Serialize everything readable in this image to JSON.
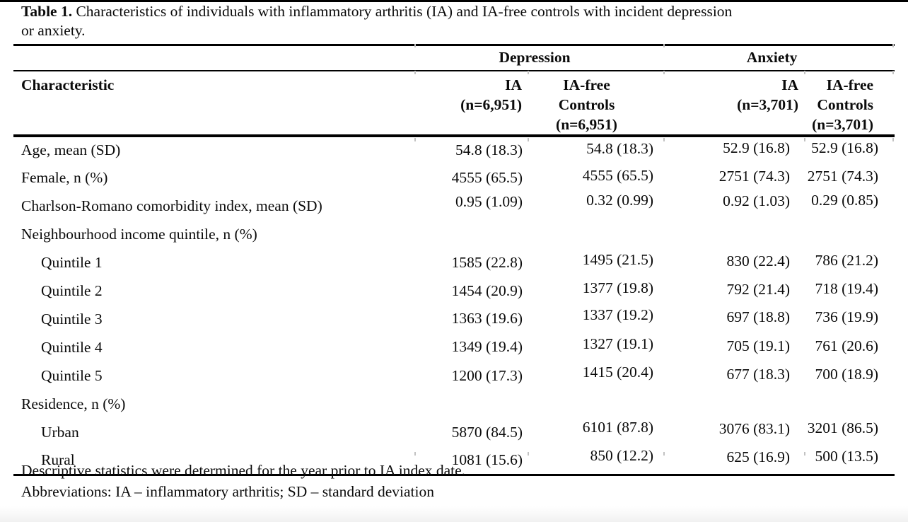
{
  "caption": {
    "label": "Table 1.",
    "text_line1": "Characteristics of individuals with inflammatory arthritis (IA) and IA-free controls with incident depression",
    "text_line2": "or anxiety."
  },
  "table": {
    "group_headers": [
      "Depression",
      "Anxiety"
    ],
    "characteristic_header": "Characteristic",
    "column_headers": [
      {
        "lines": [
          "IA",
          "(n=6,951)"
        ]
      },
      {
        "lines": [
          "IA-free",
          "Controls",
          "(n=6,951)"
        ]
      },
      {
        "lines": [
          "IA",
          "(n=3,701)"
        ]
      },
      {
        "lines": [
          "IA-free",
          "Controls",
          "(n=3,701)"
        ]
      }
    ],
    "rows": [
      {
        "label": "Age, mean (SD)",
        "indent": false,
        "values": [
          "54.8 (18.3)",
          "54.8 (18.3)",
          "52.9 (16.8)",
          "52.9 (16.8)"
        ]
      },
      {
        "label": "Female, n (%)",
        "indent": false,
        "values": [
          "4555 (65.5)",
          "4555 (65.5)",
          "2751 (74.3)",
          "2751 (74.3)"
        ]
      },
      {
        "label": "Charlson-Romano comorbidity index, mean (SD)",
        "indent": false,
        "values": [
          "0.95 (1.09)",
          "0.32 (0.99)",
          "0.92 (1.03)",
          "0.29 (0.85)"
        ]
      },
      {
        "label": "Neighbourhood income quintile, n (%)",
        "indent": false,
        "values": []
      },
      {
        "label": "Quintile 1",
        "indent": true,
        "values": [
          "1585 (22.8)",
          "1495 (21.5)",
          "830 (22.4)",
          "786 (21.2)"
        ]
      },
      {
        "label": "Quintile 2",
        "indent": true,
        "values": [
          "1454 (20.9)",
          "1377 (19.8)",
          "792 (21.4)",
          "718 (19.4)"
        ]
      },
      {
        "label": "Quintile 3",
        "indent": true,
        "values": [
          "1363 (19.6)",
          "1337 (19.2)",
          "697 (18.8)",
          "736 (19.9)"
        ]
      },
      {
        "label": "Quintile 4",
        "indent": true,
        "values": [
          "1349 (19.4)",
          "1327 (19.1)",
          "705 (19.1)",
          "761 (20.6)"
        ]
      },
      {
        "label": "Quintile 5",
        "indent": true,
        "values": [
          "1200 (17.3)",
          "1415 (20.4)",
          "677 (18.3)",
          "700 (18.9)"
        ]
      },
      {
        "label": "Residence, n (%)",
        "indent": false,
        "values": []
      },
      {
        "label": "Urban",
        "indent": true,
        "values": [
          "5870 (84.5)",
          "6101 (87.8)",
          "3076 (83.1)",
          "3201 (86.5)"
        ]
      },
      {
        "label": "Rural",
        "indent": true,
        "values": [
          "1081 (15.6)",
          "850 (12.2)",
          "625 (16.9)",
          "500 (13.5)"
        ]
      }
    ],
    "footnotes": [
      "Descriptive statistics were determined for the year prior to IA index date.",
      "Abbreviations: IA – inflammatory arthritis; SD – standard deviation"
    ]
  },
  "colors": {
    "background": "#ffffff",
    "text": "#0b0b0b",
    "rules": "#000000",
    "boundary_tick_gray": "#c2c2c2"
  }
}
